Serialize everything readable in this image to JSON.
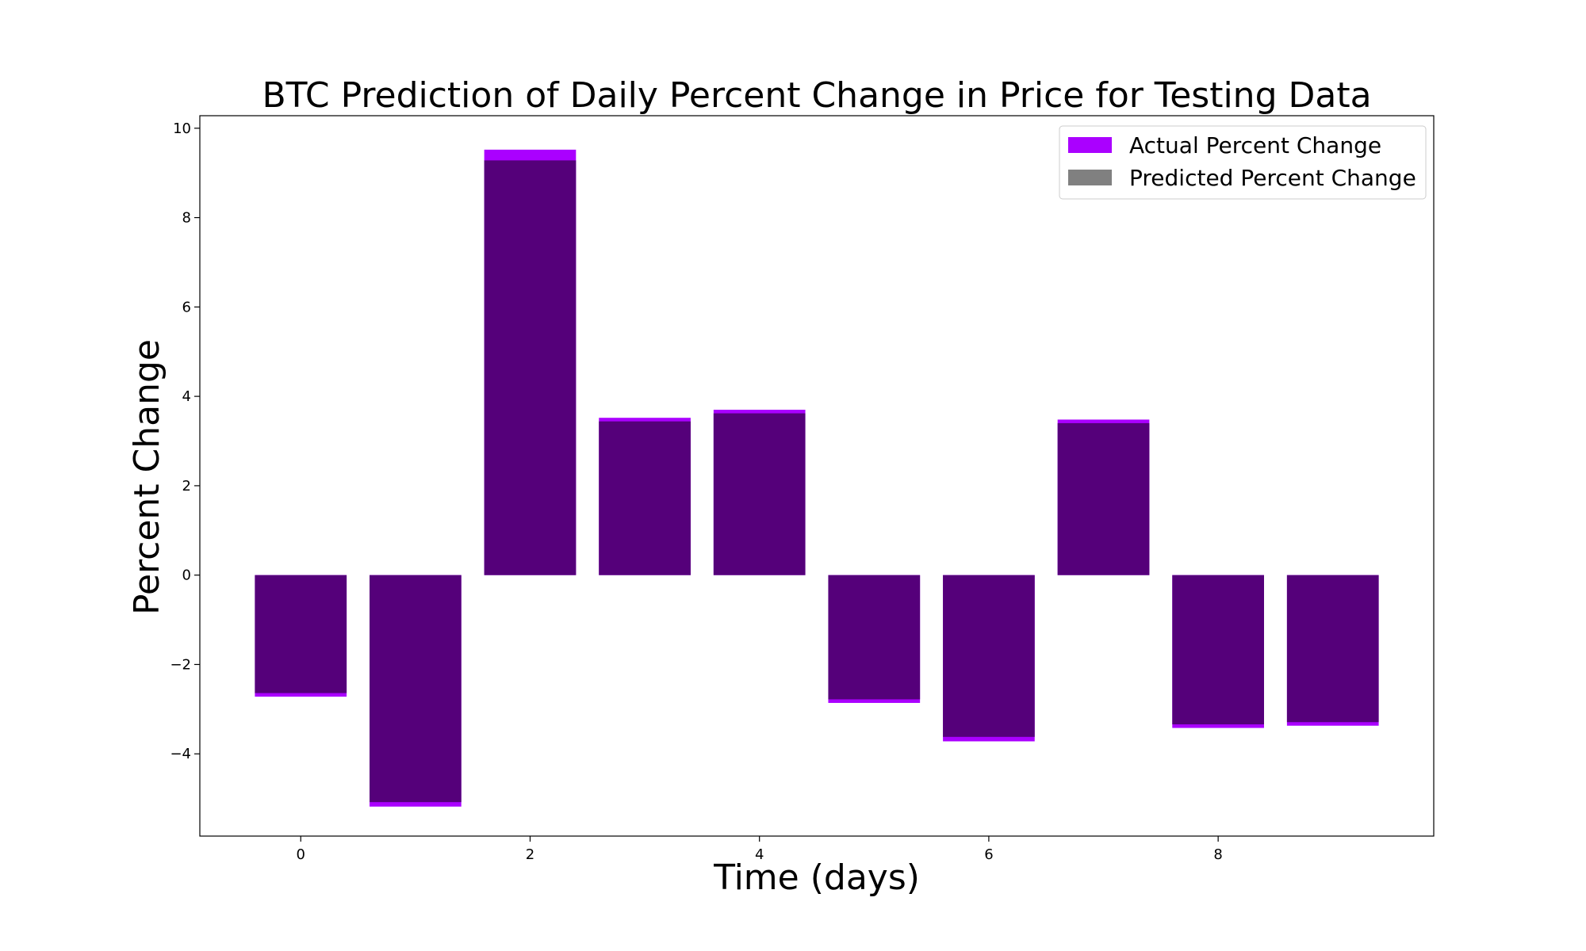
{
  "chart_data": {
    "type": "bar",
    "title": "BTC Prediction of Daily Percent Change in Price for Testing Data",
    "xlabel": "Time (days)",
    "ylabel": "Percent Change",
    "x": [
      0,
      1,
      2,
      3,
      4,
      5,
      6,
      7,
      8,
      9
    ],
    "xticks": [
      0,
      2,
      4,
      6,
      8
    ],
    "yticks": [
      -4,
      -2,
      0,
      2,
      4,
      6,
      8,
      10
    ],
    "xlim": [
      -0.88,
      9.88
    ],
    "ylim": [
      -5.84,
      10.28
    ],
    "grid": false,
    "legend_position": "top-right",
    "series": [
      {
        "name": "Actual Percent Change",
        "color": "#aa00ff",
        "values": [
          -2.72,
          -5.18,
          9.52,
          3.52,
          3.7,
          -2.86,
          -3.72,
          3.48,
          -3.42,
          -3.37
        ]
      },
      {
        "name": "Predicted Percent Change",
        "color": "#808080",
        "values": [
          -2.64,
          -5.08,
          9.28,
          3.44,
          3.62,
          -2.78,
          -3.62,
          3.4,
          -3.34,
          -3.29
        ]
      }
    ],
    "overlap_color": "#55007a"
  }
}
